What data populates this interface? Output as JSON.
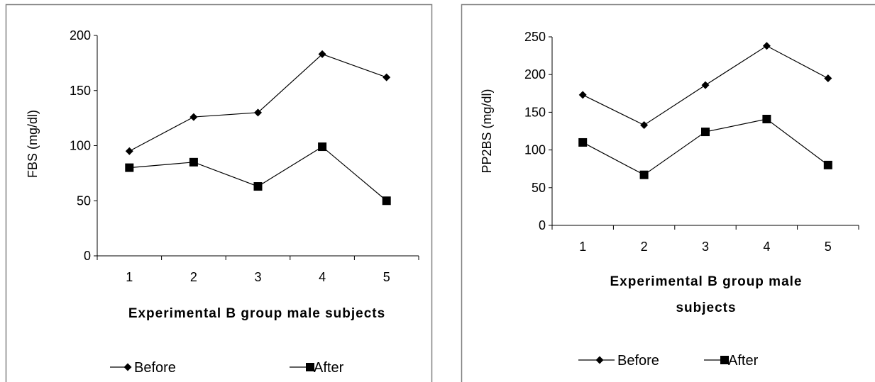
{
  "colors": {
    "line": "#000000",
    "frame": "#808080",
    "background": "#ffffff"
  },
  "chart_data": [
    {
      "type": "line",
      "categories": [
        "1",
        "2",
        "3",
        "4",
        "5"
      ],
      "series": [
        {
          "name": "Before",
          "marker": "diamond",
          "values": [
            95,
            126,
            130,
            183,
            162
          ]
        },
        {
          "name": "After",
          "marker": "square",
          "values": [
            80,
            85,
            63,
            99,
            50
          ]
        }
      ],
      "ylabel": "FBS  (mg/dl)",
      "xlabel": "Experimental B group male subjects",
      "ylim": [
        0,
        200
      ],
      "yticks": [
        "0",
        "50",
        "100",
        "150",
        "200"
      ],
      "grid": false,
      "legend": "bottom"
    },
    {
      "type": "line",
      "categories": [
        "1",
        "2",
        "3",
        "4",
        "5"
      ],
      "series": [
        {
          "name": "Before",
          "marker": "diamond",
          "values": [
            173,
            133,
            186,
            238,
            195
          ]
        },
        {
          "name": "After",
          "marker": "square",
          "values": [
            110,
            67,
            124,
            141,
            80
          ]
        }
      ],
      "ylabel": "PP2BS  (mg/dl)",
      "xlabel": [
        "Experimental B group male",
        "subjects"
      ],
      "ylim": [
        0,
        250
      ],
      "yticks": [
        "0",
        "50",
        "100",
        "150",
        "200",
        "250"
      ],
      "grid": false,
      "legend": "bottom"
    }
  ]
}
